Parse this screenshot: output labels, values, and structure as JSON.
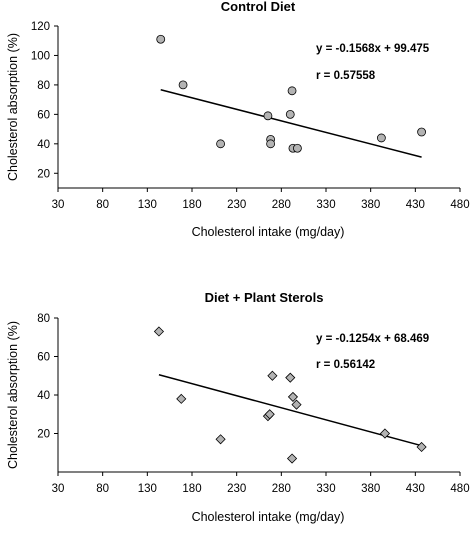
{
  "chart_data": [
    {
      "type": "scatter",
      "title": "Control Diet",
      "xlabel": "Cholesterol intake (mg/day)",
      "ylabel": "Cholesterol absorption (%)",
      "xlim": [
        30,
        480
      ],
      "ylim": [
        10,
        120
      ],
      "xticks": [
        30,
        80,
        130,
        180,
        230,
        280,
        330,
        380,
        430,
        480
      ],
      "yticks": [
        20,
        40,
        60,
        80,
        100,
        120
      ],
      "grid": false,
      "marker": "circle",
      "marker_color": "#b3b3b3",
      "series": [
        {
          "x": [
            145,
            170,
            212,
            265,
            268,
            268,
            290,
            292,
            293,
            298,
            392,
            437
          ],
          "y": [
            111,
            80,
            40,
            59,
            43,
            40,
            60,
            76,
            37,
            37,
            44,
            48
          ]
        }
      ],
      "trendline": {
        "x": [
          145,
          437
        ],
        "slope": -0.1568,
        "intercept": 99.475
      },
      "annotations": {
        "equation": "y = -0.1568x + 99.475",
        "r": "r = 0.57558"
      }
    },
    {
      "type": "scatter",
      "title": "Diet + Plant Sterols",
      "xlabel": "Cholesterol intake (mg/day)",
      "ylabel": "Cholesterol absorption (%)",
      "xlim": [
        30,
        480
      ],
      "ylim": [
        0,
        80
      ],
      "xticks": [
        30,
        80,
        130,
        180,
        230,
        280,
        330,
        380,
        430,
        480
      ],
      "yticks": [
        20,
        40,
        60,
        80
      ],
      "grid": false,
      "marker": "diamond",
      "marker_color": "#b3b3b3",
      "series": [
        {
          "x": [
            143,
            168,
            212,
            265,
            267,
            270,
            290,
            292,
            293,
            297,
            396,
            437
          ],
          "y": [
            73,
            38,
            17,
            29,
            30,
            50,
            49,
            7,
            39,
            35,
            20,
            13
          ]
        }
      ],
      "trendline": {
        "x": [
          143,
          437
        ],
        "slope": -0.1254,
        "intercept": 68.469
      },
      "annotations": {
        "equation": "y = -0.1254x  + 68.469",
        "r": "r = 0.56142"
      }
    }
  ]
}
